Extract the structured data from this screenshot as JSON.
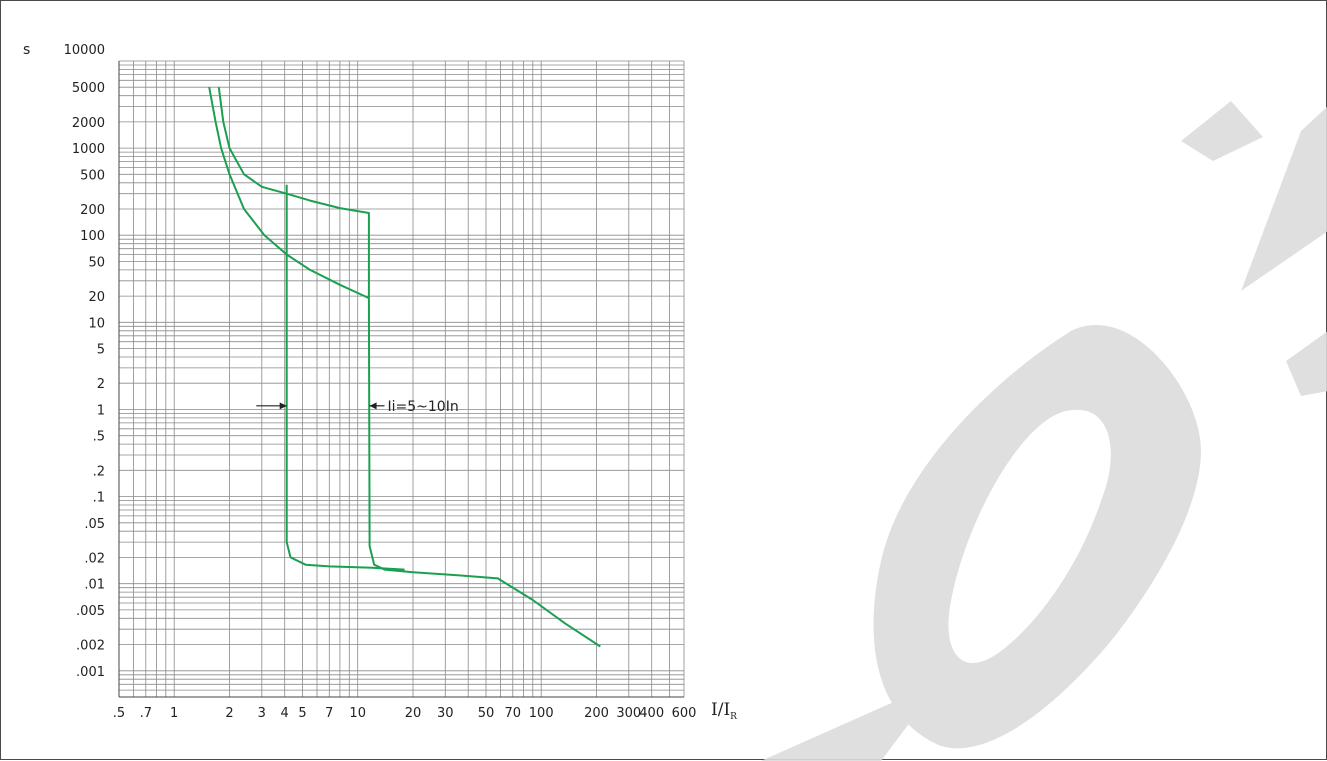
{
  "chart_data": {
    "type": "line",
    "title": "",
    "ylabel": "s",
    "xlabel": "I/I",
    "xlabel_subscript": "R",
    "x_scale": "log",
    "y_scale": "log",
    "xlim": [
      0.5,
      600
    ],
    "ylim": [
      0.0005,
      10000
    ],
    "grid": true,
    "y_tick_labels": [
      {
        "value": 10000,
        "label": "10000"
      },
      {
        "value": 5000,
        "label": "5000"
      },
      {
        "value": 2000,
        "label": "2000"
      },
      {
        "value": 1000,
        "label": "1000"
      },
      {
        "value": 500,
        "label": "500"
      },
      {
        "value": 200,
        "label": "200"
      },
      {
        "value": 100,
        "label": "100"
      },
      {
        "value": 50,
        "label": "50"
      },
      {
        "value": 20,
        "label": "20"
      },
      {
        "value": 10,
        "label": "10"
      },
      {
        "value": 5,
        "label": "5"
      },
      {
        "value": 2,
        "label": "2"
      },
      {
        "value": 1,
        "label": "1"
      },
      {
        "value": 0.5,
        "label": ".5"
      },
      {
        "value": 0.2,
        "label": ".2"
      },
      {
        "value": 0.1,
        "label": ".1"
      },
      {
        "value": 0.05,
        "label": ".05"
      },
      {
        "value": 0.02,
        "label": ".02"
      },
      {
        "value": 0.01,
        "label": ".01"
      },
      {
        "value": 0.005,
        "label": ".005"
      },
      {
        "value": 0.002,
        "label": ".002"
      },
      {
        "value": 0.001,
        "label": ".001"
      }
    ],
    "x_tick_labels": [
      {
        "value": 0.5,
        "label": ".5"
      },
      {
        "value": 0.7,
        "label": ".7"
      },
      {
        "value": 1,
        "label": "1"
      },
      {
        "value": 2,
        "label": "2"
      },
      {
        "value": 3,
        "label": "3"
      },
      {
        "value": 4,
        "label": "4"
      },
      {
        "value": 5,
        "label": "5"
      },
      {
        "value": 7,
        "label": "7"
      },
      {
        "value": 10,
        "label": "10"
      },
      {
        "value": 20,
        "label": "20"
      },
      {
        "value": 30,
        "label": "30"
      },
      {
        "value": 50,
        "label": "50"
      },
      {
        "value": 70,
        "label": "70"
      },
      {
        "value": 100,
        "label": "100"
      },
      {
        "value": 200,
        "label": "200"
      },
      {
        "value": 300,
        "label": "300"
      },
      {
        "value": 400,
        "label": "400"
      },
      {
        "value": 600,
        "label": "600"
      }
    ],
    "series": [
      {
        "color": "#1aa050",
        "points": [
          [
            1.75,
            5000
          ],
          [
            1.85,
            2000
          ],
          [
            2.0,
            1000
          ],
          [
            2.4,
            500
          ],
          [
            3.0,
            360
          ],
          [
            4.1,
            300
          ],
          [
            5.5,
            250
          ],
          [
            8.0,
            205
          ],
          [
            11.5,
            180
          ],
          [
            11.5,
            20
          ],
          [
            11.6,
            0.027
          ],
          [
            12.3,
            0.0165
          ],
          [
            14.0,
            0.0145
          ],
          [
            20.0,
            0.0135
          ],
          [
            35.0,
            0.0125
          ],
          [
            58.0,
            0.0115
          ],
          [
            90.0,
            0.0065
          ],
          [
            135.0,
            0.0035
          ],
          [
            210.0,
            0.0019
          ]
        ]
      },
      {
        "color": "#1aa050",
        "points": [
          [
            1.55,
            5000
          ],
          [
            1.68,
            2000
          ],
          [
            1.8,
            1000
          ],
          [
            2.0,
            500
          ],
          [
            2.4,
            200
          ],
          [
            3.1,
            100
          ],
          [
            4.1,
            60
          ],
          [
            5.5,
            40
          ],
          [
            8.0,
            27
          ],
          [
            11.5,
            19
          ]
        ]
      },
      {
        "color": "#1aa050",
        "points": [
          [
            4.1,
            380
          ],
          [
            4.1,
            0.03
          ],
          [
            4.3,
            0.02
          ],
          [
            5.2,
            0.0165
          ],
          [
            7.0,
            0.0158
          ],
          [
            12.0,
            0.0152
          ],
          [
            18.0,
            0.0145
          ]
        ]
      }
    ],
    "annotations": [
      {
        "text": "Ii=5~10In",
        "x": 11.6,
        "y": 1.1,
        "arrows": [
          {
            "from": 2.8,
            "to": 4.1
          },
          {
            "from": 14.0,
            "to": 11.6
          }
        ]
      }
    ]
  }
}
